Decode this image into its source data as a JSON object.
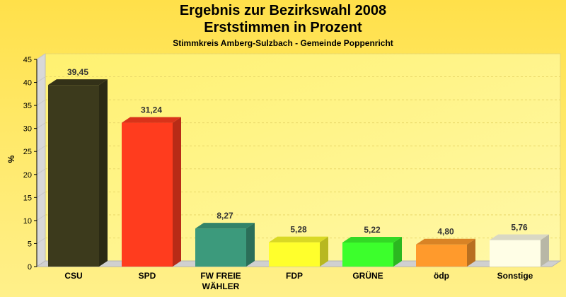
{
  "chart_data": {
    "type": "bar",
    "title": "Ergebnis zur Bezirkswahl 2008",
    "subtitle": "Erststimmen in Prozent",
    "subsubtitle": "Stimmkreis Amberg-Sulzbach - Gemeinde Poppenricht",
    "ylabel": "%",
    "xlabel": "",
    "ylim": [
      0,
      45
    ],
    "yticks": [
      0,
      5,
      10,
      15,
      20,
      25,
      30,
      35,
      40,
      45
    ],
    "grid": true,
    "categories": [
      [
        "CSU"
      ],
      [
        "SPD"
      ],
      [
        "FW FREIE",
        "WÄHLER"
      ],
      [
        "FDP"
      ],
      [
        "GRÜNE"
      ],
      [
        "ödp"
      ],
      [
        "Sonstige"
      ]
    ],
    "values": [
      39.45,
      31.24,
      8.27,
      5.28,
      5.22,
      4.8,
      5.76
    ],
    "value_labels": [
      "39,45",
      "31,24",
      "8,27",
      "5,28",
      "5,22",
      "4,80",
      "5,76"
    ],
    "colors": [
      "#3c3a1c",
      "#ff3c1e",
      "#3c9a7c",
      "#ffff2c",
      "#3cff2c",
      "#ff9a2c",
      "#fffee6"
    ]
  }
}
